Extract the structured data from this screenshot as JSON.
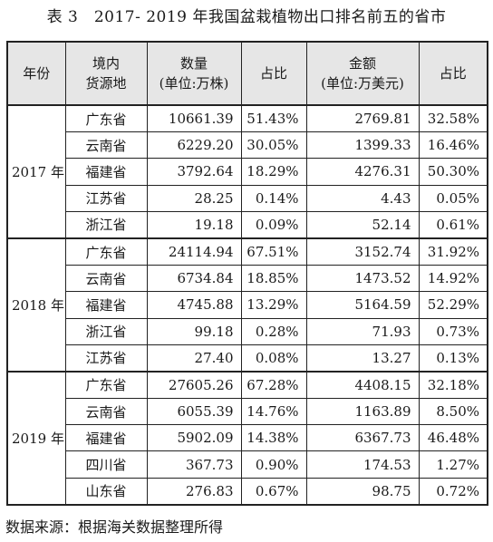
{
  "caption": "表 3　2017- 2019 年我国盆栽植物出口排名前五的省市",
  "headers": {
    "year": "年份",
    "region_line1": "境内",
    "region_line2": "货源地",
    "qty_line1": "数量",
    "qty_line2": "(单位:万株)",
    "share1": "占比",
    "amt_line1": "金额",
    "amt_line2": "(单位:万美元)",
    "share2": "占比"
  },
  "groups": [
    {
      "year": "2017 年",
      "rows": [
        {
          "region": "广东省",
          "qty": "10661.39",
          "qty_share": "51.43%",
          "amount": "2769.81",
          "amount_share": "32.58%"
        },
        {
          "region": "云南省",
          "qty": "6229.20",
          "qty_share": "30.05%",
          "amount": "1399.33",
          "amount_share": "16.46%"
        },
        {
          "region": "福建省",
          "qty": "3792.64",
          "qty_share": "18.29%",
          "amount": "4276.31",
          "amount_share": "50.30%"
        },
        {
          "region": "江苏省",
          "qty": "28.25",
          "qty_share": "0.14%",
          "amount": "4.43",
          "amount_share": "0.05%"
        },
        {
          "region": "浙江省",
          "qty": "19.18",
          "qty_share": "0.09%",
          "amount": "52.14",
          "amount_share": "0.61%"
        }
      ]
    },
    {
      "year": "2018 年",
      "rows": [
        {
          "region": "广东省",
          "qty": "24114.94",
          "qty_share": "67.51%",
          "amount": "3152.74",
          "amount_share": "31.92%"
        },
        {
          "region": "云南省",
          "qty": "6734.84",
          "qty_share": "18.85%",
          "amount": "1473.52",
          "amount_share": "14.92%"
        },
        {
          "region": "福建省",
          "qty": "4745.88",
          "qty_share": "13.29%",
          "amount": "5164.59",
          "amount_share": "52.29%"
        },
        {
          "region": "浙江省",
          "qty": "99.18",
          "qty_share": "0.28%",
          "amount": "71.93",
          "amount_share": "0.73%"
        },
        {
          "region": "江苏省",
          "qty": "27.40",
          "qty_share": "0.08%",
          "amount": "13.27",
          "amount_share": "0.13%"
        }
      ]
    },
    {
      "year": "2019 年",
      "rows": [
        {
          "region": "广东省",
          "qty": "27605.26",
          "qty_share": "67.28%",
          "amount": "4408.15",
          "amount_share": "32.18%"
        },
        {
          "region": "云南省",
          "qty": "6055.39",
          "qty_share": "14.76%",
          "amount": "1163.89",
          "amount_share": "8.50%"
        },
        {
          "region": "福建省",
          "qty": "5902.09",
          "qty_share": "14.38%",
          "amount": "6367.73",
          "amount_share": "46.48%"
        },
        {
          "region": "四川省",
          "qty": "367.73",
          "qty_share": "0.90%",
          "amount": "174.53",
          "amount_share": "1.27%"
        },
        {
          "region": "山东省",
          "qty": "276.83",
          "qty_share": "0.67%",
          "amount": "98.75",
          "amount_share": "0.72%"
        }
      ]
    }
  ],
  "source": "数据来源：根据海关数据整理所得"
}
